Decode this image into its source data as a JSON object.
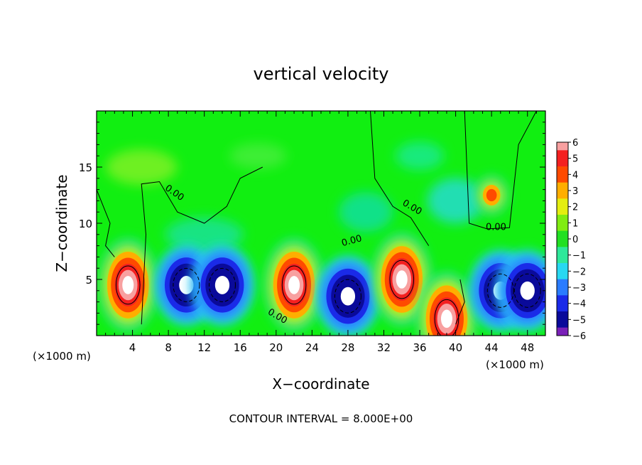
{
  "chart_data": {
    "type": "heatmap",
    "title": "vertical velocity",
    "xlabel": "X−coordinate",
    "ylabel": "Z−coordinate",
    "x_unit_left": "(×1000 m)",
    "x_unit_right": "(×1000 m)",
    "footer": "CONTOUR INTERVAL = 8.000E+00",
    "contour_labels": [
      "0.00",
      "0.00",
      "0.00",
      "0.00",
      "0.00"
    ],
    "xlim": [
      0,
      50
    ],
    "ylim": [
      0,
      20
    ],
    "xticks": [
      4,
      8,
      12,
      16,
      20,
      24,
      28,
      32,
      36,
      40,
      44,
      48
    ],
    "yticks": [
      5,
      10,
      15
    ],
    "colorbar": {
      "ticks": [
        "6",
        "5",
        "4",
        "3",
        "2",
        "1",
        "0",
        "−1",
        "−2",
        "−3",
        "−4",
        "−5",
        "−6"
      ],
      "range": [
        -6,
        6
      ],
      "stops": [
        {
          "value": -6,
          "color": "#7a20b8"
        },
        {
          "value": -5,
          "color": "#0a0a9a"
        },
        {
          "value": -4,
          "color": "#1a2ae8"
        },
        {
          "value": -3,
          "color": "#2a7cff"
        },
        {
          "value": -2,
          "color": "#28d8f2"
        },
        {
          "value": -1,
          "color": "#2ee89a"
        },
        {
          "value": 0,
          "color": "#22e022"
        },
        {
          "value": 1,
          "color": "#80ec12"
        },
        {
          "value": 2,
          "color": "#e4ee10"
        },
        {
          "value": 3,
          "color": "#ffae00"
        },
        {
          "value": 4,
          "color": "#ff4a00"
        },
        {
          "value": 5,
          "color": "#f42020"
        },
        {
          "value": 6,
          "color": "#f8a0a0"
        }
      ]
    },
    "features": [
      {
        "x": 3.5,
        "z": 4.5,
        "value": 14,
        "kind": "updraft"
      },
      {
        "x": 10,
        "z": 4.5,
        "value": -8,
        "kind": "downdraft"
      },
      {
        "x": 14,
        "z": 4.5,
        "value": -8,
        "kind": "downdraft"
      },
      {
        "x": 22,
        "z": 4.5,
        "value": 14,
        "kind": "updraft"
      },
      {
        "x": 28,
        "z": 3.5,
        "value": -8,
        "kind": "downdraft"
      },
      {
        "x": 34,
        "z": 5,
        "value": 14,
        "kind": "updraft"
      },
      {
        "x": 39,
        "z": 1.5,
        "value": 8,
        "kind": "updraft"
      },
      {
        "x": 45,
        "z": 4,
        "value": -8,
        "kind": "downdraft"
      },
      {
        "x": 48,
        "z": 4,
        "value": -8,
        "kind": "downdraft"
      },
      {
        "x": 44,
        "z": 12.5,
        "value": 3.2,
        "kind": "updraft"
      }
    ]
  }
}
